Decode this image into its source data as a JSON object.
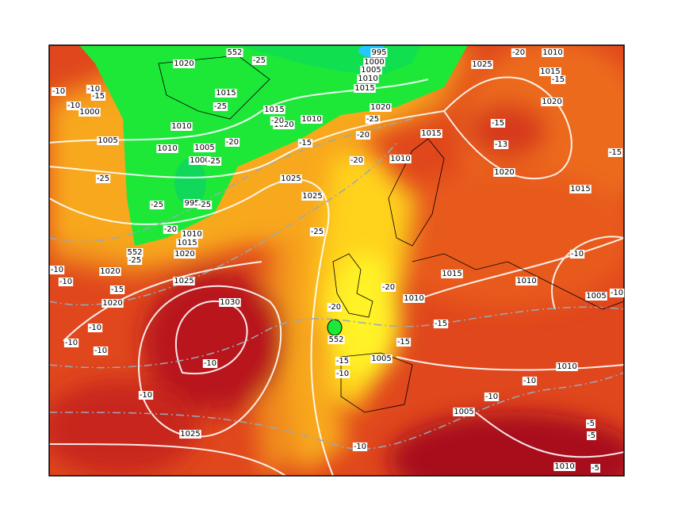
{
  "contour_labels": [
    "1020",
    "552",
    "-25",
    "995",
    "1000",
    "1005",
    "1010",
    "1015",
    "1025",
    "-20",
    "1010",
    "1015",
    "-15",
    "-10",
    "-10",
    "-10",
    "1000",
    "-15",
    "1015",
    "-25",
    "1015",
    "1020",
    "-25",
    "1010",
    "1020",
    "1010",
    "-20",
    "-20",
    "1015",
    "1020",
    "-15",
    "-13",
    "-15",
    "1005",
    "1010",
    "1005",
    "-20",
    "-15",
    "1000",
    "-20",
    "1010",
    "-25",
    "-25",
    "1025",
    "1025",
    "1020",
    "1015",
    "995",
    "-25",
    "-25",
    "-20",
    "1010",
    "1015",
    "1020",
    "552",
    "-25",
    "-25",
    "-10",
    "1020",
    "-10",
    "-10",
    "-15",
    "1025",
    "1015",
    "1010",
    "1020",
    "-20",
    "1005",
    "-10",
    "1010",
    "1030",
    "-20",
    "-10",
    "-15",
    "552",
    "-10",
    "-10",
    "-15",
    "-10",
    "-15",
    "1005",
    "1010",
    "-10",
    "-10",
    "-10",
    "-10",
    "1005",
    "-5",
    "-5",
    "1025",
    "-10",
    "1010",
    "-5"
  ]
}
